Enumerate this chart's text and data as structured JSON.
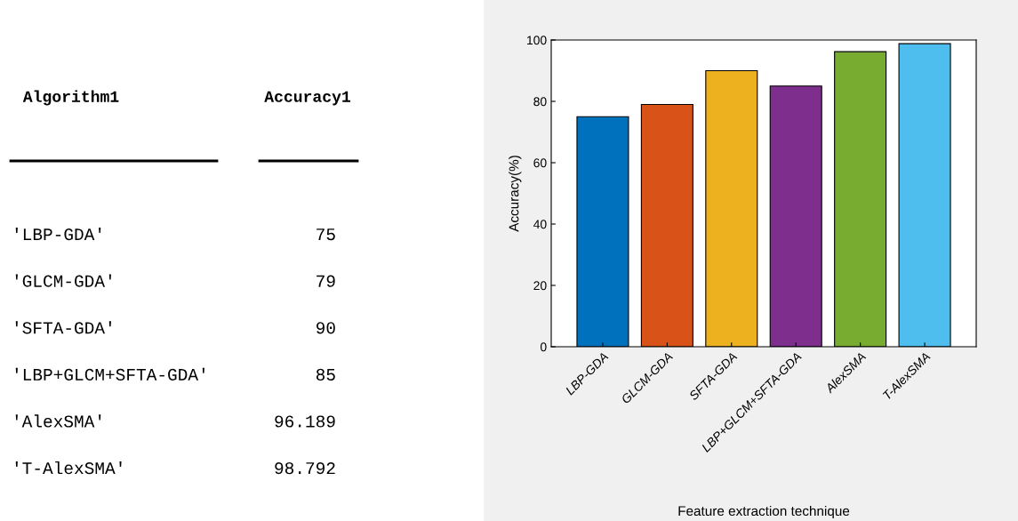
{
  "chart_data": [
    {
      "type": "other",
      "annotations": [
        "Algorithm1",
        "Accuracy1",
        "'LBP-GDA'",
        "75",
        "'GLCM-GDA'",
        "79",
        "'SFTA-GDA'",
        "90",
        "'LBP+GLCM+SFTA-GDA'",
        "85",
        "'AlexSMA'",
        "96.189",
        "'T-AlexSMA'",
        "98.792"
      ]
    },
    {
      "type": "bar",
      "categories": [
        "LBP-GDA",
        "GLCM-GDA",
        "SFTA-GDA",
        "LBP+GLCM+SFTA-GDA",
        "AlexSMA",
        "T-AlexSMA"
      ],
      "values": [
        75,
        79,
        90,
        85,
        96.189,
        98.792
      ],
      "colors": [
        "#0072bd",
        "#d95319",
        "#edb120",
        "#7e2f8e",
        "#77ac30",
        "#4dbeee"
      ],
      "ylim": [
        0,
        100
      ],
      "yticks": [
        0,
        20,
        40,
        60,
        80,
        100
      ],
      "xlabel": "Feature extraction technique",
      "ylabel": "Accuracy(%)",
      "grid": false,
      "legend": false
    }
  ]
}
